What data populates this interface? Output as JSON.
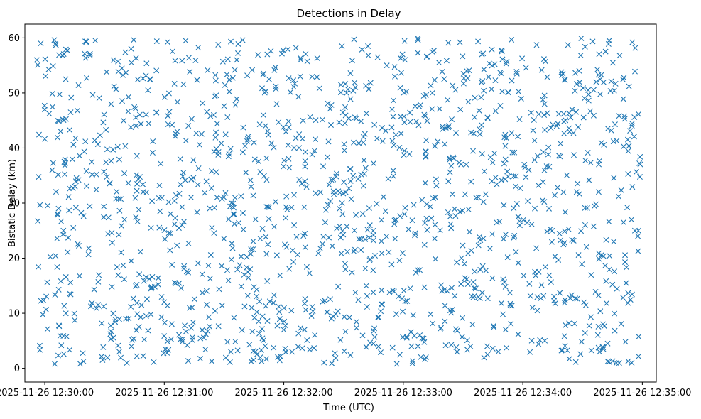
{
  "chart_data": {
    "type": "scatter",
    "title": "Detections in Delay",
    "xlabel": "Time (UTC)",
    "ylabel": "Bistatic Delay (km)",
    "marker": "x",
    "color": "#1f77b4",
    "x_range": [
      "2025-11-26 12:29:50",
      "2025-11-26 12:35:07"
    ],
    "ylim": [
      -2.5,
      62.5
    ],
    "xticks": [
      "2025-11-26 12:30:00",
      "2025-11-26 12:31:00",
      "2025-11-26 12:32:00",
      "2025-11-26 12:33:00",
      "2025-11-26 12:34:00",
      "2025-11-26 12:35:00"
    ],
    "yticks": [
      0,
      10,
      20,
      30,
      40,
      50,
      60
    ],
    "series": [
      {
        "name": "detections",
        "x_start": "2025-11-26 12:29:56",
        "x_end": "2025-11-26 12:34:59",
        "count": 1500,
        "delay_min_km": 0.5,
        "delay_max_km": 60.0,
        "sample_points": [
          {
            "t": "2025-11-26 12:29:56",
            "delay": 56.0
          },
          {
            "t": "2025-11-26 12:29:58",
            "delay": 59.0
          },
          {
            "t": "2025-11-26 12:30:00",
            "delay": 47.0
          },
          {
            "t": "2025-11-26 12:30:05",
            "delay": 0.8
          },
          {
            "t": "2025-11-26 12:30:13",
            "delay": 46.5
          },
          {
            "t": "2025-11-26 12:30:29",
            "delay": 1.5
          },
          {
            "t": "2025-11-26 12:30:40",
            "delay": 27.0
          },
          {
            "t": "2025-11-26 12:31:08",
            "delay": 38.0
          },
          {
            "t": "2025-11-26 12:31:45",
            "delay": 41.0
          },
          {
            "t": "2025-11-26 12:32:28",
            "delay": 29.0
          },
          {
            "t": "2025-11-26 12:33:27",
            "delay": 3.0
          },
          {
            "t": "2025-11-26 12:34:17",
            "delay": 44.0
          },
          {
            "t": "2025-11-26 12:34:58",
            "delay": 25.0
          }
        ]
      }
    ]
  }
}
